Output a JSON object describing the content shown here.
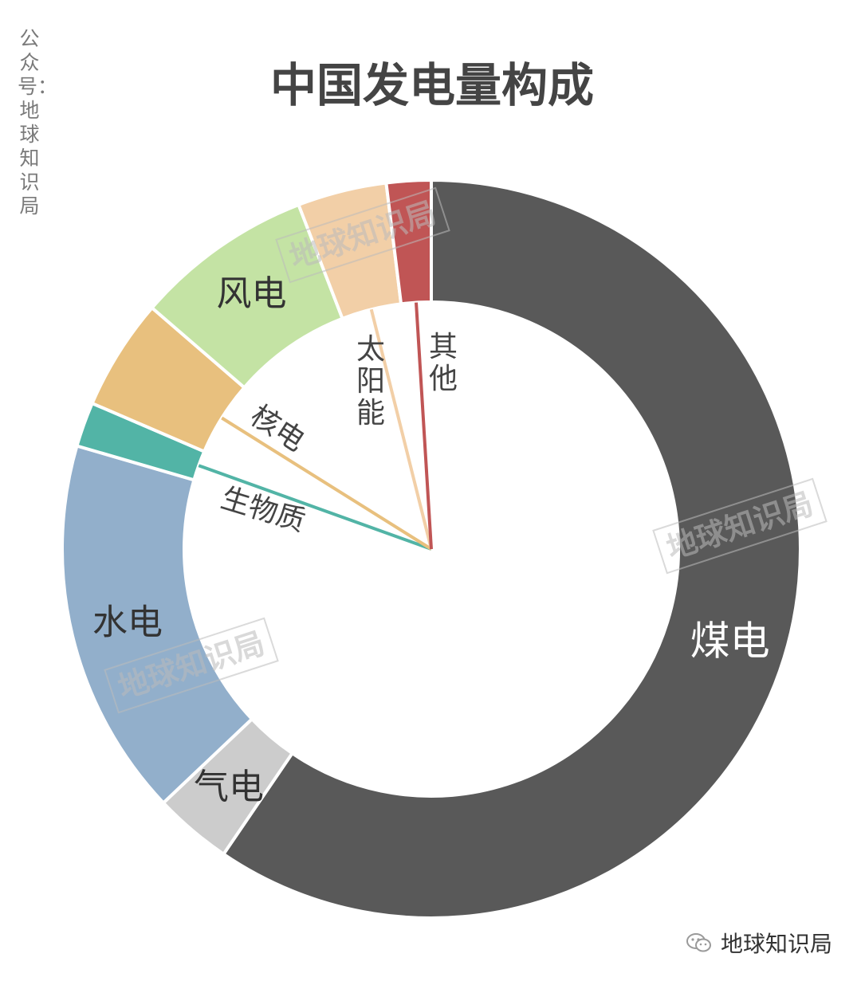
{
  "credit": "公众号：地球知识局",
  "footer": {
    "text": "地球知识局",
    "icon": "wechat-icon"
  },
  "watermark": "地球知识局",
  "chart_data": {
    "type": "pie",
    "donut": true,
    "title": "中国发电量构成",
    "direction": "clockwise",
    "start": "top",
    "categories": [
      "煤电",
      "气电",
      "水电",
      "生物质",
      "核电",
      "风电",
      "太阳能",
      "其他"
    ],
    "values": [
      61,
      3.5,
      17,
      2,
      5,
      8,
      4,
      2
    ],
    "unit": "%",
    "colors": [
      "#595959",
      "#cccccc",
      "#92afcb",
      "#52b4a6",
      "#e8c07e",
      "#c4e3a4",
      "#f2cfa7",
      "#c05555"
    ],
    "label_placement": [
      "ring",
      "ring",
      "ring",
      "inner-leader",
      "inner-leader",
      "ring",
      "inner-leader",
      "inner-leader"
    ],
    "label_colors": [
      "#ffffff",
      "#333333",
      "#333333",
      "#444444",
      "#444444",
      "#333333",
      "#444444",
      "#444444"
    ]
  }
}
